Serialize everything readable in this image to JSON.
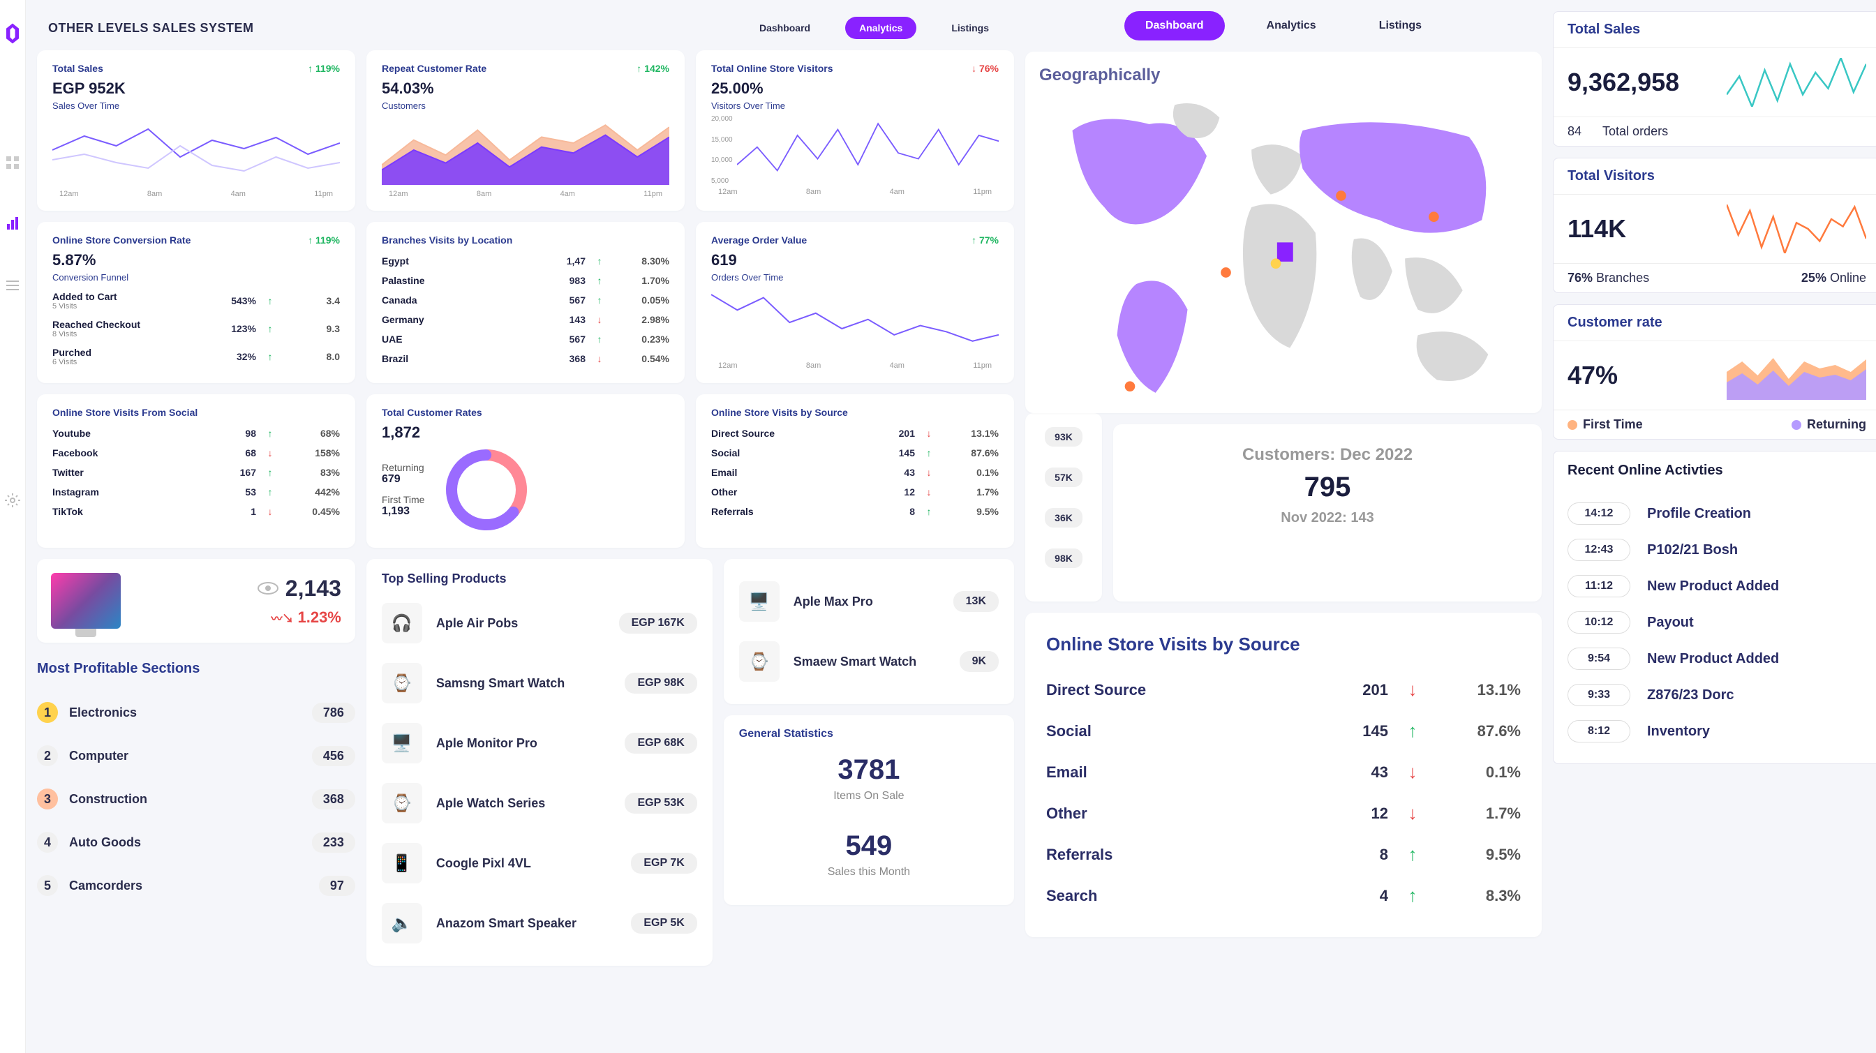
{
  "app": {
    "title": "OTHER LEVELS SALES SYSTEM"
  },
  "tabs": {
    "dashboard": "Dashboard",
    "analytics": "Analytics",
    "listings": "Listings"
  },
  "colors": {
    "primary": "#8922ff",
    "accent": "#6a4cff",
    "teal": "#39c7c4",
    "orange": "#ff8a3d",
    "green": "#1fb661",
    "red": "#e64545",
    "blue": "#2b3a8f",
    "area1": "#f7b99a",
    "area2": "#7a3aff",
    "pink": "#ff8896",
    "bg": "#f5f6fa"
  },
  "total_sales": {
    "title": "Total Sales",
    "value": "EGP 952K",
    "sub": "Sales Over Time",
    "delta": "119%",
    "dir": "up",
    "chart": {
      "type": "line",
      "series": [
        [
          25,
          35,
          28,
          40,
          20,
          32,
          26,
          34,
          22,
          30
        ],
        [
          18,
          22,
          16,
          12,
          28,
          14,
          10,
          20,
          12,
          16
        ]
      ],
      "colors": [
        "#7a5cff",
        "#cfc6ff"
      ],
      "yrange": [
        0,
        50
      ]
    },
    "xticks": [
      "12am",
      "8am",
      "4am",
      "11pm"
    ]
  },
  "repeat_rate": {
    "title": "Repeat Customer Rate",
    "value": "54.03%",
    "sub": "Customers",
    "delta": "142%",
    "dir": "up",
    "chart": {
      "type": "area",
      "series": [
        [
          20,
          45,
          30,
          55,
          25,
          48,
          42,
          60,
          35,
          58
        ],
        [
          15,
          35,
          22,
          42,
          18,
          38,
          32,
          50,
          28,
          48
        ]
      ],
      "colors": [
        "#f7b99a",
        "#7a3aff"
      ],
      "yrange": [
        0,
        70
      ]
    },
    "xticks": [
      "12am",
      "8am",
      "4am",
      "11pm"
    ]
  },
  "store_visitors": {
    "title": "Total Online Store Visitors",
    "value": "25.00%",
    "sub": "Visitors Over Time",
    "delta": "76%",
    "dir": "down",
    "yticks": [
      "20,000",
      "15,000",
      "10,000",
      "5,000"
    ],
    "chart": {
      "type": "line",
      "series": [
        [
          6,
          12,
          4,
          16,
          8,
          18,
          6,
          20,
          10,
          8,
          18,
          6,
          16,
          14
        ]
      ],
      "colors": [
        "#7a5cff"
      ],
      "yrange": [
        0,
        22
      ]
    },
    "xticks": [
      "12am",
      "8am",
      "4am",
      "11pm"
    ]
  },
  "conversion": {
    "title": "Online Store Conversion Rate",
    "value": "5.87%",
    "sub": "Conversion Funnel",
    "delta": "119%",
    "dir": "up",
    "rows": [
      {
        "label": "Added to Cart",
        "sub": "5 Visits",
        "v1": "543%",
        "dir": "up",
        "v2": "3.4"
      },
      {
        "label": "Reached Checkout",
        "sub": "8 Visits",
        "v1": "123%",
        "dir": "up",
        "v2": "9.3"
      },
      {
        "label": "Purched",
        "sub": "6 Visits",
        "v1": "32%",
        "dir": "up",
        "v2": "8.0"
      }
    ]
  },
  "branches": {
    "title": "Branches Visits by Location",
    "rows": [
      {
        "label": "Egypt",
        "v1": "1,47",
        "dir": "up",
        "v2": "8.30%"
      },
      {
        "label": "Palastine",
        "v1": "983",
        "dir": "up",
        "v2": "1.70%"
      },
      {
        "label": "Canada",
        "v1": "567",
        "dir": "up",
        "v2": "0.05%"
      },
      {
        "label": "Germany",
        "v1": "143",
        "dir": "down",
        "v2": "2.98%"
      },
      {
        "label": "UAE",
        "v1": "567",
        "dir": "up",
        "v2": "0.23%"
      },
      {
        "label": "Brazil",
        "v1": "368",
        "dir": "down",
        "v2": "0.54%"
      }
    ]
  },
  "aov": {
    "title": "Average Order Value",
    "value": "619",
    "sub": "Orders Over Time",
    "delta": "77%",
    "dir": "up",
    "chart": {
      "type": "line",
      "series": [
        [
          40,
          30,
          38,
          22,
          28,
          18,
          24,
          14,
          20,
          16,
          10,
          14
        ]
      ],
      "colors": [
        "#7a5cff"
      ],
      "yrange": [
        0,
        45
      ]
    },
    "xticks": [
      "12am",
      "8am",
      "4am",
      "11pm"
    ]
  },
  "social": {
    "title": "Online Store Visits From Social",
    "rows": [
      {
        "label": "Youtube",
        "v1": "98",
        "dir": "up",
        "v2": "68%"
      },
      {
        "label": "Facebook",
        "v1": "68",
        "dir": "down",
        "v2": "158%"
      },
      {
        "label": "Twitter",
        "v1": "167",
        "dir": "up",
        "v2": "83%"
      },
      {
        "label": "Instagram",
        "v1": "53",
        "dir": "up",
        "v2": "442%"
      },
      {
        "label": "TikTok",
        "v1": "1",
        "dir": "down",
        "v2": "0.45%"
      }
    ]
  },
  "cust_rates": {
    "title": "Total Customer Rates",
    "value": "1,872",
    "returning_label": "Returning",
    "returning_val": "679",
    "first_label": "First Time",
    "first_val": "1,193",
    "donut": {
      "returning_pct": 36,
      "colors": [
        "#ff8896",
        "#9a6bff"
      ],
      "track": "#e8e3ff"
    }
  },
  "by_source_small": {
    "title": "Online Store Visits by Source",
    "rows": [
      {
        "label": "Direct Source",
        "v1": "201",
        "dir": "down",
        "v2": "13.1%"
      },
      {
        "label": "Social",
        "v1": "145",
        "dir": "up",
        "v2": "87.6%"
      },
      {
        "label": "Email",
        "v1": "43",
        "dir": "down",
        "v2": "0.1%"
      },
      {
        "label": "Other",
        "v1": "12",
        "dir": "down",
        "v2": "1.7%"
      },
      {
        "label": "Referrals",
        "v1": "8",
        "dir": "up",
        "v2": "9.5%"
      }
    ]
  },
  "views": {
    "count": "2,143",
    "delta": "1.23%"
  },
  "sections": {
    "title": "Most Profitable Sections",
    "rows": [
      {
        "rank": "1",
        "name": "Electronics",
        "count": "786"
      },
      {
        "rank": "2",
        "name": "Computer",
        "count": "456"
      },
      {
        "rank": "3",
        "name": "Construction",
        "count": "368"
      },
      {
        "rank": "4",
        "name": "Auto Goods",
        "count": "233"
      },
      {
        "rank": "5",
        "name": "Camcorders",
        "count": "97"
      }
    ]
  },
  "top_products": {
    "title": "Top Selling Products",
    "rows": [
      {
        "name": "Aple Air Pobs",
        "val": "EGP 167K",
        "emoji": "🎧"
      },
      {
        "name": "Samsng Smart Watch",
        "val": "EGP 98K",
        "emoji": "⌚"
      },
      {
        "name": "Aple Monitor Pro",
        "val": "EGP 68K",
        "emoji": "🖥️"
      },
      {
        "name": "Aple Watch Series",
        "val": "EGP 53K",
        "emoji": "⌚"
      },
      {
        "name": "Coogle Pixl 4VL",
        "val": "EGP 7K",
        "emoji": "📱"
      },
      {
        "name": "Anazom Smart Speaker",
        "val": "EGP 5K",
        "emoji": "🔈"
      }
    ],
    "extra": [
      {
        "name": "Aple Max Pro",
        "val": "13K",
        "emoji": "🖥️"
      },
      {
        "name": "Smaew Smart Watch",
        "val": "9K",
        "emoji": "⌚"
      }
    ]
  },
  "gen_stats": {
    "title": "General Statistics",
    "items_val": "3781",
    "items_label": "Items On Sale",
    "sales_val": "549",
    "sales_label": "Sales this Month"
  },
  "geo": {
    "title": "Geographically",
    "heat": [
      "93K",
      "57K",
      "36K",
      "98K"
    ],
    "fill": "#b685ff",
    "land": "#d9d9d9",
    "markers": [
      {
        "x": 440,
        "y": 162,
        "c": "#ff7a3d"
      },
      {
        "x": 260,
        "y": 282,
        "c": "#ff7a3d"
      },
      {
        "x": 338,
        "y": 268,
        "c": "#ffd24d"
      },
      {
        "x": 585,
        "y": 195,
        "c": "#ff7a3d"
      },
      {
        "x": 110,
        "y": 460,
        "c": "#ff7a3d"
      }
    ]
  },
  "customers_box": {
    "title": "Customers: Dec 2022",
    "value": "795",
    "prev": "Nov 2022: 143"
  },
  "by_source_big": {
    "title": "Online Store Visits by Source",
    "rows": [
      {
        "label": "Direct Source",
        "v1": "201",
        "dir": "down",
        "v2": "13.1%"
      },
      {
        "label": "Social",
        "v1": "145",
        "dir": "up",
        "v2": "87.6%"
      },
      {
        "label": "Email",
        "v1": "43",
        "dir": "down",
        "v2": "0.1%"
      },
      {
        "label": "Other",
        "v1": "12",
        "dir": "down",
        "v2": "1.7%"
      },
      {
        "label": "Referrals",
        "v1": "8",
        "dir": "up",
        "v2": "9.5%"
      },
      {
        "label": "Search",
        "v1": "4",
        "dir": "up",
        "v2": "8.3%"
      }
    ]
  },
  "r_total_sales": {
    "title": "Total Sales",
    "value": "9,362,958",
    "spark": {
      "pts": [
        30,
        45,
        20,
        50,
        25,
        55,
        30,
        48,
        35,
        60,
        32,
        55
      ],
      "color": "#39c7c4"
    },
    "orders_count": "84",
    "orders_label": "Total orders"
  },
  "r_visitors": {
    "title": "Total Visitors",
    "value": "114K",
    "spark": {
      "pts": [
        60,
        35,
        55,
        25,
        50,
        20,
        45,
        40,
        30,
        48,
        42,
        58,
        32
      ],
      "color": "#ff7a3d"
    },
    "b_pct": "76%",
    "b_lbl": "Branches",
    "o_pct": "25%",
    "o_lbl": "Online"
  },
  "r_cust_rate": {
    "title": "Customer rate",
    "value": "47%",
    "area": {
      "s1": [
        40,
        55,
        35,
        60,
        30,
        55,
        45,
        50,
        40,
        58
      ],
      "s2": [
        25,
        38,
        22,
        42,
        20,
        40,
        32,
        36,
        28,
        44
      ],
      "c1": "#ffb380",
      "c2": "#b59bff"
    },
    "first_label": "First Time",
    "ret_label": "Returning"
  },
  "activities": {
    "title": "Recent Online Activties",
    "rows": [
      {
        "time": "14:12",
        "txt": "Profile Creation"
      },
      {
        "time": "12:43",
        "txt": "P102/21 Bosh"
      },
      {
        "time": "11:12",
        "txt": "New Product Added"
      },
      {
        "time": "10:12",
        "txt": "Payout"
      },
      {
        "time": "9:54",
        "txt": "New Product Added"
      },
      {
        "time": "9:33",
        "txt": "Z876/23 Dorc"
      },
      {
        "time": "8:12",
        "txt": "Inventory"
      }
    ]
  }
}
